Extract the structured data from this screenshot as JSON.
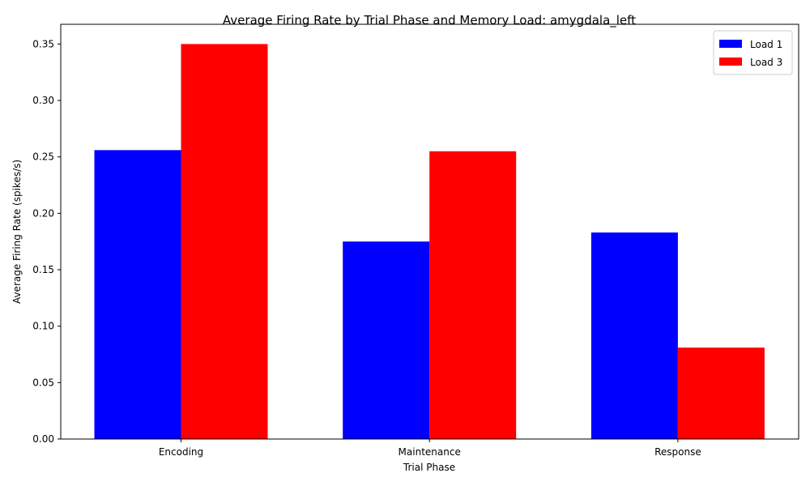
{
  "chart_data": {
    "type": "bar",
    "title": "Average Firing Rate by Trial Phase and Memory Load: amygdala_left",
    "xlabel": "Trial Phase",
    "ylabel": "Average Firing Rate (spikes/s)",
    "categories": [
      "Encoding",
      "Maintenance",
      "Response"
    ],
    "series": [
      {
        "name": "Load 1",
        "color": "#0000ff",
        "values": [
          0.256,
          0.175,
          0.183
        ]
      },
      {
        "name": "Load 3",
        "color": "#ff0000",
        "values": [
          0.35,
          0.255,
          0.081
        ]
      }
    ],
    "ylim": [
      0,
      0.3675
    ],
    "yticks": [
      0.0,
      0.05,
      0.1,
      0.15,
      0.2,
      0.25,
      0.3,
      0.35
    ],
    "ytick_labels": [
      "0.00",
      "0.05",
      "0.10",
      "0.15",
      "0.20",
      "0.25",
      "0.30",
      "0.35"
    ],
    "grid": false,
    "legend_position": "top-right"
  }
}
